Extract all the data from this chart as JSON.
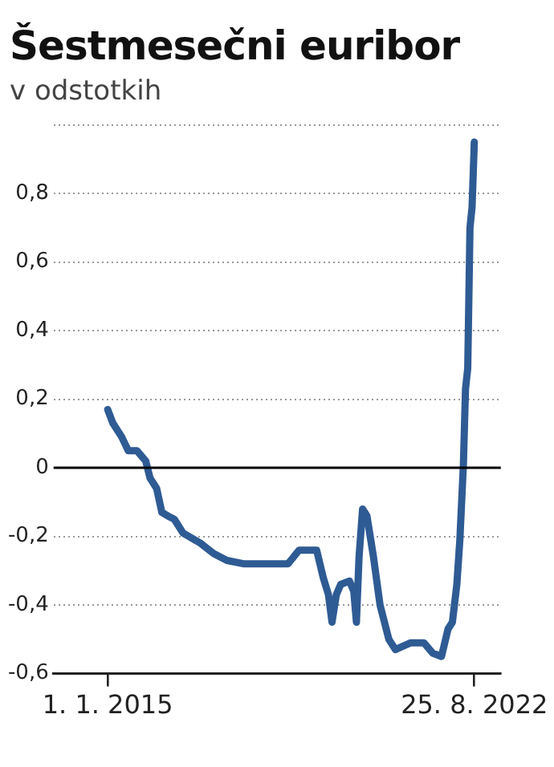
{
  "chart_data": {
    "type": "line",
    "title": "Šestmesečni euribor",
    "subtitle": "v odstotkih",
    "x": [
      "2015-01-01",
      "2015-02-10",
      "2015-04-18",
      "2015-06-07",
      "2015-08-12",
      "2015-10-18",
      "2015-11-20",
      "2016-01-09",
      "2016-02-18",
      "2016-04-02",
      "2016-05-23",
      "2016-07-28",
      "2016-12-09",
      "2017-03-19",
      "2017-06-27",
      "2017-11-07",
      "2018-10-06",
      "2018-12-29",
      "2019-05-12",
      "2019-07-01",
      "2019-08-10",
      "2019-09-06",
      "2019-10-09",
      "2019-11-11",
      "2020-01-17",
      "2020-02-19",
      "2020-03-10",
      "2020-03-30",
      "2020-04-26",
      "2020-05-29",
      "2020-07-18",
      "2020-09-06",
      "2020-11-12",
      "2021-01-01",
      "2021-04-28",
      "2021-08-06",
      "2021-10-11",
      "2021-12-18",
      "2022-02-06",
      "2022-03-11",
      "2022-04-14",
      "2022-05-07",
      "2022-06-03",
      "2022-06-19",
      "2022-07-06",
      "2022-07-23",
      "2022-08-08",
      "2022-08-25"
    ],
    "series": [
      {
        "color": "#2f5b94",
        "values": [
          0.17,
          0.13,
          0.09,
          0.05,
          0.05,
          0.02,
          -0.03,
          -0.06,
          -0.13,
          -0.14,
          -0.15,
          -0.19,
          -0.22,
          -0.25,
          -0.27,
          -0.28,
          -0.28,
          -0.24,
          -0.24,
          -0.32,
          -0.37,
          -0.45,
          -0.37,
          -0.34,
          -0.33,
          -0.36,
          -0.45,
          -0.26,
          -0.12,
          -0.14,
          -0.26,
          -0.4,
          -0.5,
          -0.53,
          -0.51,
          -0.51,
          -0.54,
          -0.55,
          -0.47,
          -0.45,
          -0.34,
          -0.21,
          0.01,
          0.23,
          0.29,
          0.7,
          0.76,
          0.95
        ]
      }
    ],
    "xlim": [
      "2013-11-15",
      "2023-03-15"
    ],
    "xticks": [
      {
        "value": "2015-01-01",
        "label": "1. 1. 2015"
      },
      {
        "value": "2022-08-25",
        "label": "25. 8. 2022"
      }
    ],
    "ylim": [
      -0.6,
      1.0
    ],
    "yticks": [
      {
        "value": -0.6,
        "label": "-0,6"
      },
      {
        "value": -0.4,
        "label": "-0,4"
      },
      {
        "value": -0.2,
        "label": "-0,2"
      },
      {
        "value": 0,
        "label": "0"
      },
      {
        "value": 0.2,
        "label": "0,2"
      },
      {
        "value": 0.4,
        "label": "0,4"
      },
      {
        "value": 0.6,
        "label": "0,6"
      },
      {
        "value": 0.8,
        "label": "0,8"
      },
      {
        "value": 1.0,
        "label": null
      }
    ],
    "ref_lines": [
      {
        "axis": "y",
        "value": 0,
        "color": "#000000"
      }
    ],
    "grid": "y",
    "legend": false,
    "marker": "none",
    "line_style": "solid"
  }
}
